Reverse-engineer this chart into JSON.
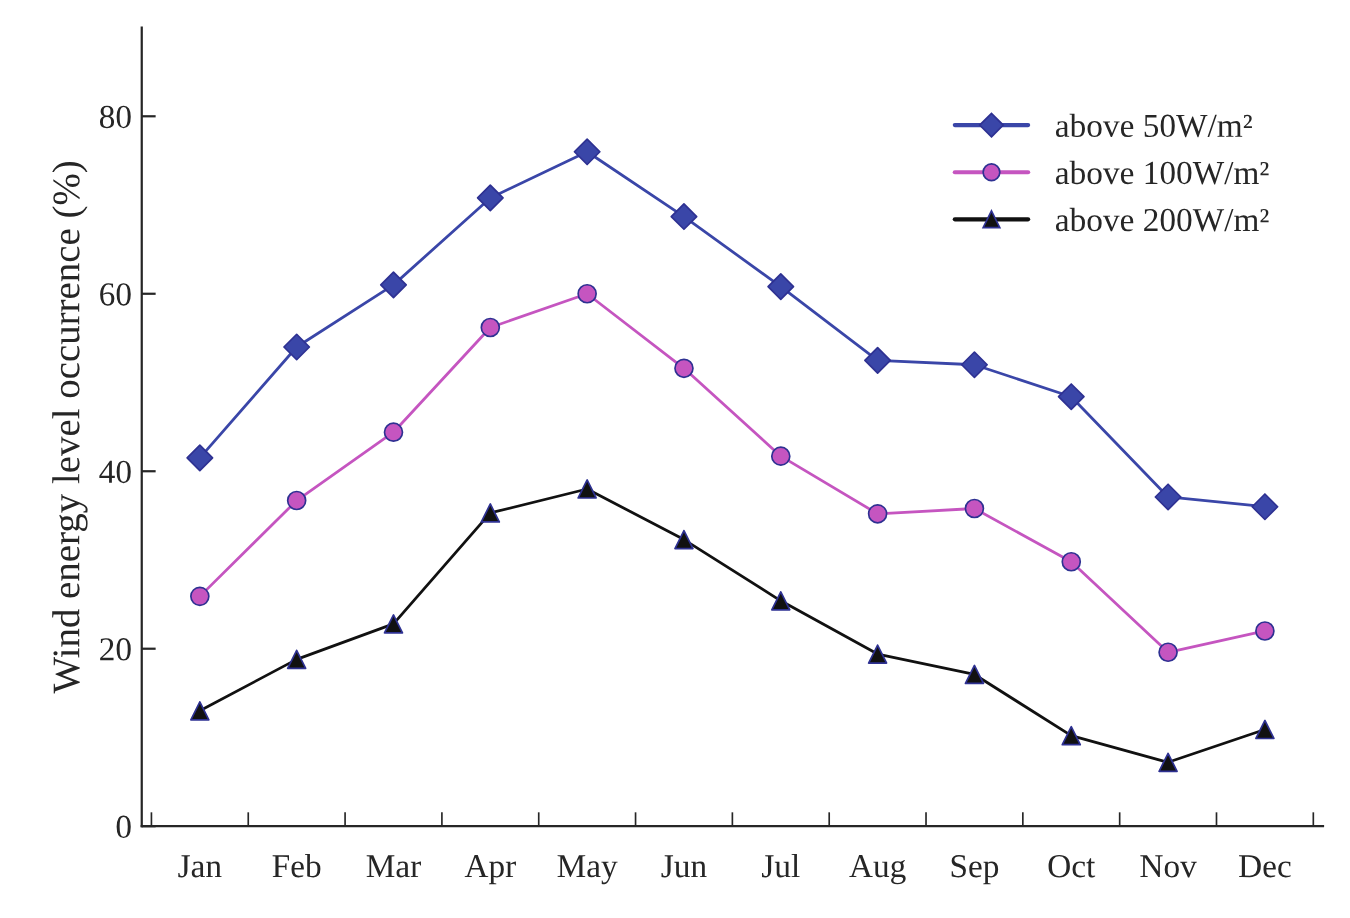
{
  "chart_data": {
    "type": "line",
    "ylabel": "Wind energy level occurrence (%)",
    "categories": [
      "Jan",
      "Feb",
      "Mar",
      "Apr",
      "May",
      "Jun",
      "Jul",
      "Aug",
      "Sep",
      "Oct",
      "Nov",
      "Dec"
    ],
    "series": [
      {
        "name": "above 50W/m²",
        "color": "#3a46a8",
        "marker": "diamond",
        "values": [
          41.5,
          54,
          61,
          70.8,
          76,
          68.7,
          60.8,
          52.5,
          52,
          48.4,
          37.1,
          36
        ]
      },
      {
        "name": "above 100W/m²",
        "color": "#c555c0",
        "marker": "circle",
        "values": [
          25.9,
          36.7,
          44.4,
          56.2,
          60,
          51.6,
          41.7,
          35.2,
          35.8,
          29.8,
          19.6,
          22
        ]
      },
      {
        "name": "above 200W/m²",
        "color": "#111111",
        "marker": "triangle",
        "values": [
          13,
          18.8,
          22.8,
          35.3,
          38,
          32.3,
          25.4,
          19.4,
          17.1,
          10.2,
          7.2,
          10.9
        ]
      }
    ],
    "ylim": [
      0,
      90
    ],
    "yticks": [
      0,
      20,
      40,
      60,
      80
    ],
    "grid": false,
    "legend": "top right",
    "line_style": "solid"
  }
}
